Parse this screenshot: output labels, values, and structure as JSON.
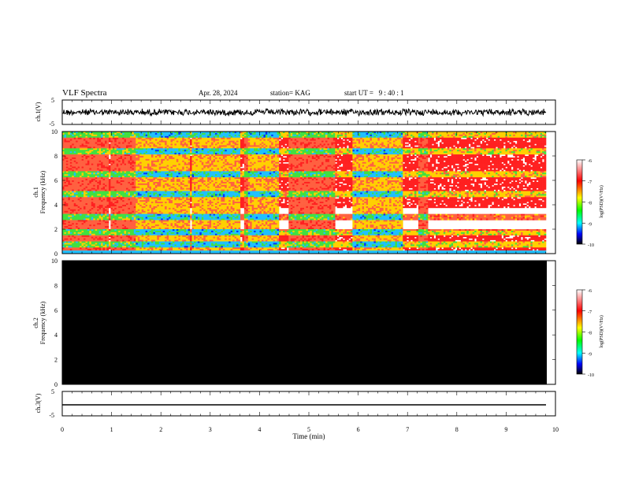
{
  "header": {
    "title": "VLF Spectra",
    "date": "Apr. 28, 2024",
    "station": "station= KAG",
    "start": "start UT =   9 : 40 : 1"
  },
  "chart_data": [
    {
      "type": "line",
      "panel": "ch1-waveform",
      "ylabel": "ch.1(V)",
      "yticks": [
        "5",
        "-5"
      ],
      "ylim": [
        -5,
        5
      ],
      "xlim": [
        0,
        10
      ],
      "series": [
        {
          "values": "noise band approx. -1 to 1 V, 0 to 9.8 min"
        }
      ]
    },
    {
      "type": "heatmap",
      "panel": "ch1-spectrogram",
      "ylabel": "ch.1\nFrequency (kHz)",
      "ylabel_line1": "ch.1",
      "ylabel_line2": "Frequency (kHz)",
      "yticks": [
        "0",
        "2",
        "4",
        "6",
        "8",
        "10"
      ],
      "ylim": [
        0,
        10
      ],
      "xlim": [
        0,
        10
      ],
      "colorbar": {
        "label": "log(PSD)(V²/Hz)",
        "ticks": [
          "-6",
          "-7",
          "-8",
          "-9",
          "-10"
        ],
        "range": [
          -10,
          -6
        ]
      }
    },
    {
      "type": "heatmap",
      "panel": "ch2-spectrogram",
      "ylabel": "ch.2\nFrequency (kHz)",
      "ylabel_line1": "ch.2",
      "ylabel_line2": "Frequency (kHz)",
      "yticks": [
        "0",
        "2",
        "4",
        "6",
        "8",
        "10"
      ],
      "ylim": [
        0,
        10
      ],
      "xlim": [
        0,
        10
      ],
      "colorbar": {
        "label": "log(PSD)(V²/Hz)",
        "ticks": [
          "-6",
          "-7",
          "-8",
          "-9",
          "-10"
        ],
        "range": [
          -10,
          -6
        ]
      }
    },
    {
      "type": "line",
      "panel": "ch3-waveform",
      "ylabel": "ch.3(V)",
      "yticks": [
        "5",
        "-5"
      ],
      "ylim": [
        -5,
        5
      ],
      "xlim": [
        0,
        10
      ],
      "series": [
        {
          "values": "constant approx. -1.3 V, 0 to 9.8 min"
        }
      ]
    }
  ],
  "xaxis": {
    "label": "Time (min)",
    "ticks": [
      "0",
      "1",
      "2",
      "3",
      "4",
      "5",
      "6",
      "7",
      "8",
      "9",
      "10"
    ]
  }
}
